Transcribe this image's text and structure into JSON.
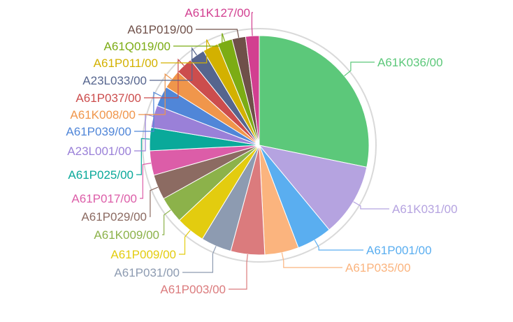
{
  "chart_data": {
    "type": "pie",
    "title": "",
    "slices": [
      {
        "label": "A61K036/00",
        "value": 28.2,
        "color": "#5cc87a"
      },
      {
        "label": "A61K031/00",
        "value": 10.8,
        "color": "#b5a3e0"
      },
      {
        "label": "A61P001/00",
        "value": 5.2,
        "color": "#5aaef0"
      },
      {
        "label": "A61P035/00",
        "value": 5.0,
        "color": "#fbb47e"
      },
      {
        "label": "A61P003/00",
        "value": 5.0,
        "color": "#db7b7d"
      },
      {
        "label": "A61P031/00",
        "value": 4.5,
        "color": "#8d9bb1"
      },
      {
        "label": "A61P009/00",
        "value": 4.3,
        "color": "#e3cc0f"
      },
      {
        "label": "A61K009/00",
        "value": 3.9,
        "color": "#8cb24a"
      },
      {
        "label": "A61P029/00",
        "value": 3.7,
        "color": "#8c6b62"
      },
      {
        "label": "A61P017/00",
        "value": 3.6,
        "color": "#dc5da8"
      },
      {
        "label": "A61P025/00",
        "value": 3.4,
        "color": "#0aa99a"
      },
      {
        "label": "A23L001/00",
        "value": 3.3,
        "color": "#9a80d8"
      },
      {
        "label": "A61P039/00",
        "value": 3.0,
        "color": "#5086d8"
      },
      {
        "label": "A61K008/00",
        "value": 2.8,
        "color": "#f0964b"
      },
      {
        "label": "A61P037/00",
        "value": 2.5,
        "color": "#cc4d4d"
      },
      {
        "label": "A23L033/00",
        "value": 2.3,
        "color": "#56658e"
      },
      {
        "label": "A61P011/00",
        "value": 2.3,
        "color": "#d3b100"
      },
      {
        "label": "A61Q019/00",
        "value": 2.2,
        "color": "#7cac14"
      },
      {
        "label": "A61P019/00",
        "value": 2.0,
        "color": "#6f5049"
      },
      {
        "label": "A61K127/00",
        "value": 2.0,
        "color": "#d23f90"
      }
    ]
  }
}
